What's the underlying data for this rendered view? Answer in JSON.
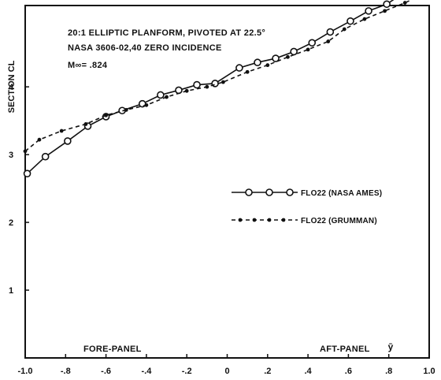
{
  "chart_data": {
    "type": "line",
    "annotations": {
      "line1": "20:1 ELLIPTIC PLANFORM, PIVOTED AT 22.5°",
      "line2": "NASA 3606-02,40 ZERO INCIDENCE",
      "line3": "M∞= .824"
    },
    "ylabel": "SECTION CL",
    "xlabel": "ȳ",
    "panel_labels": {
      "fore": "FORE-PANEL",
      "aft": "AFT-PANEL"
    },
    "xlim": [
      -1.0,
      1.0
    ],
    "ylim": [
      0,
      5.2
    ],
    "x_ticks": [
      -1.0,
      -0.8,
      -0.6,
      -0.4,
      -0.2,
      0,
      0.2,
      0.4,
      0.6,
      0.8,
      1.0
    ],
    "x_tick_labels": [
      "-1.0",
      "-.8",
      "-.6",
      "-.4",
      "-.2",
      "0",
      ".2",
      ".4",
      ".6",
      ".8",
      "1.0"
    ],
    "y_ticks": [
      1,
      2,
      3,
      4
    ],
    "y_tick_labels": [
      "1",
      "2",
      "3",
      "4"
    ],
    "grid": false,
    "legend_position": "right",
    "series": [
      {
        "name": "FLO22 (NASA AMES)",
        "style": "solid",
        "marker": "open-circle",
        "color": "#111111",
        "x": [
          -0.99,
          -0.9,
          -0.79,
          -0.69,
          -0.6,
          -0.52,
          -0.42,
          -0.33,
          -0.24,
          -0.15,
          -0.06,
          0.06,
          0.15,
          0.24,
          0.33,
          0.42,
          0.51,
          0.61,
          0.7,
          0.79,
          0.87,
          0.99
        ],
        "y": [
          2.72,
          2.97,
          3.2,
          3.42,
          3.56,
          3.65,
          3.75,
          3.88,
          3.95,
          4.03,
          4.05,
          4.28,
          4.36,
          4.42,
          4.52,
          4.65,
          4.81,
          4.97,
          5.12,
          5.22,
          5.38,
          5.55
        ]
      },
      {
        "name": "FLO22 (GRUMMAN)",
        "style": "dashed",
        "marker": "filled-dot",
        "color": "#111111",
        "x": [
          -1.0,
          -0.93,
          -0.82,
          -0.7,
          -0.6,
          -0.5,
          -0.4,
          -0.3,
          -0.2,
          -0.1,
          -0.02,
          0.1,
          0.2,
          0.3,
          0.4,
          0.5,
          0.58,
          0.68,
          0.78,
          0.88,
          0.98
        ],
        "y": [
          3.05,
          3.22,
          3.35,
          3.45,
          3.58,
          3.66,
          3.73,
          3.85,
          3.94,
          4.0,
          4.07,
          4.22,
          4.32,
          4.44,
          4.55,
          4.67,
          4.85,
          5.0,
          5.12,
          5.24,
          5.38
        ]
      }
    ]
  }
}
